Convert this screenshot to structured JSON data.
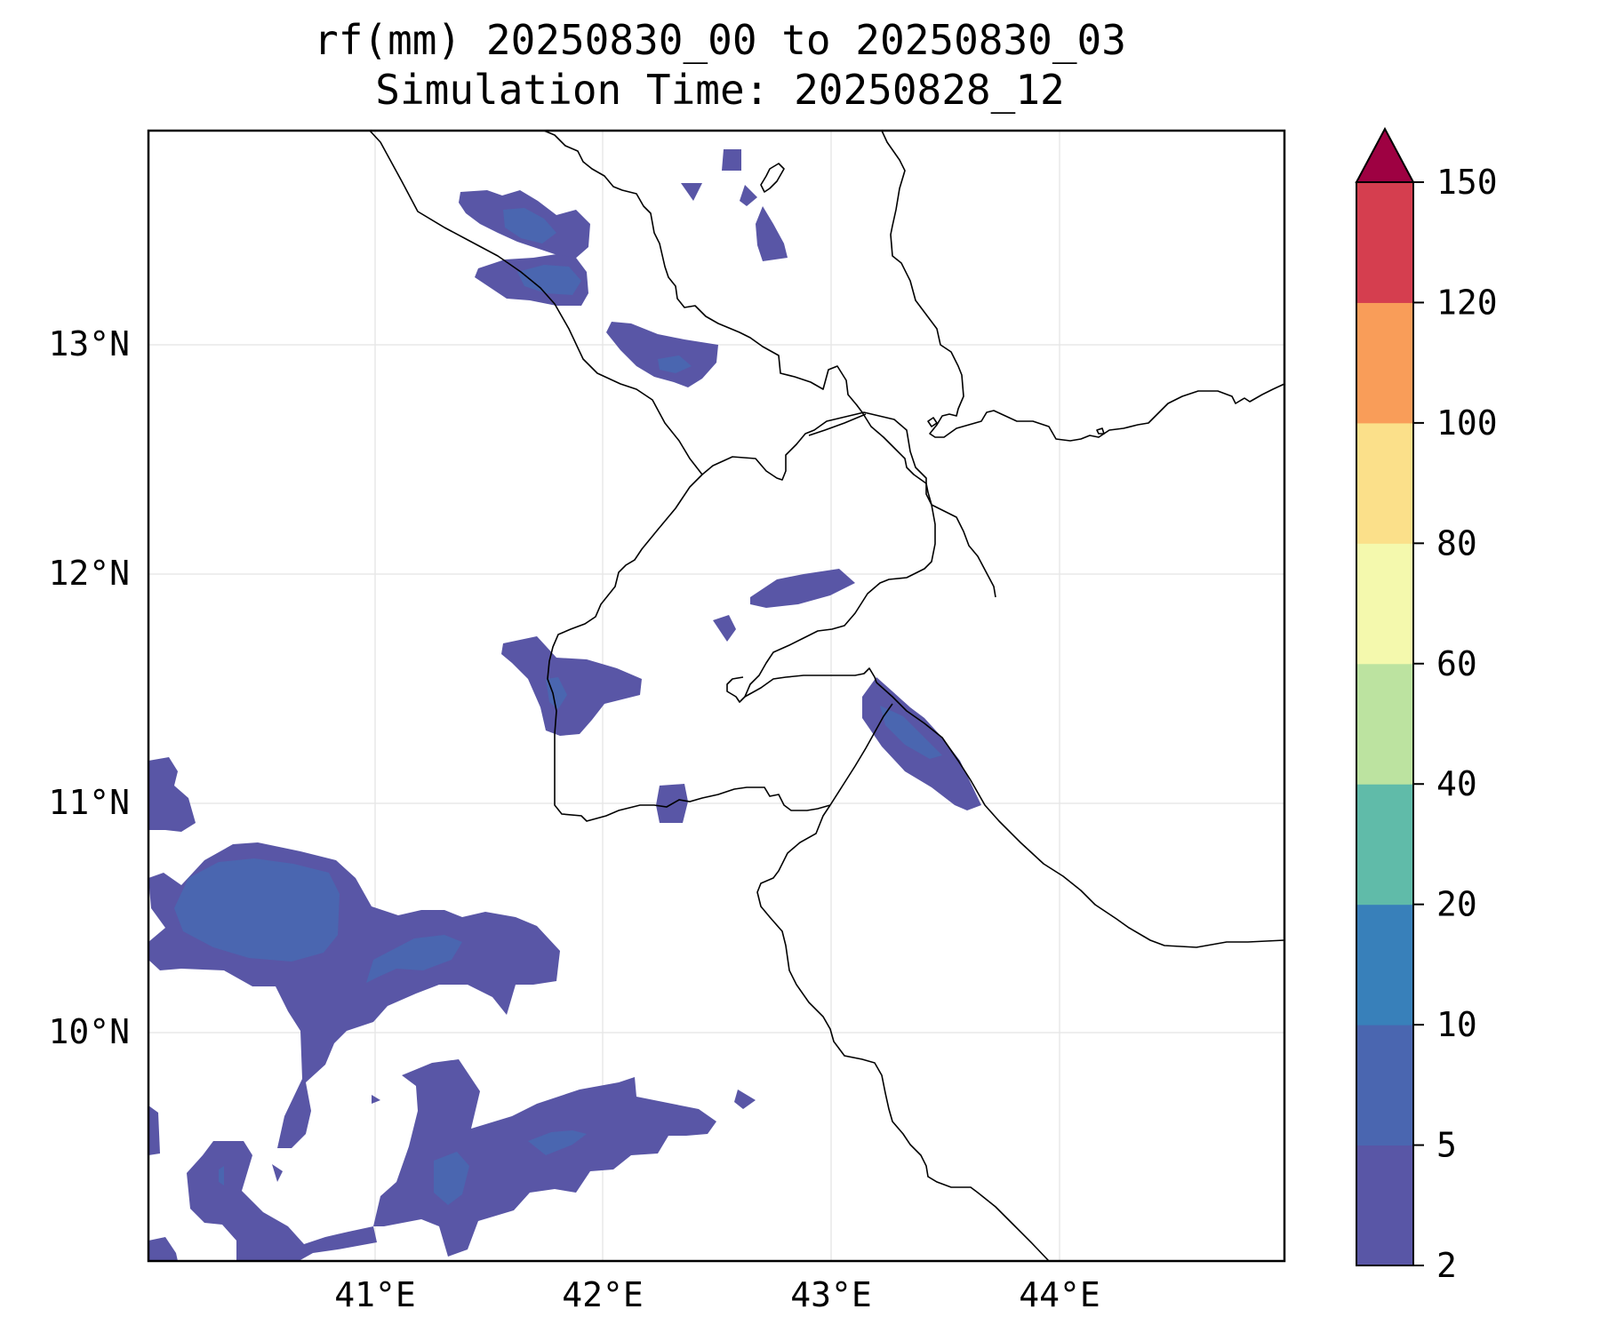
{
  "map": {
    "title_line1": "rf(mm) 20250830_00 to 20250830_03",
    "title_line2": "Simulation Time: 20250828_12",
    "lon_ticks": [
      "41°E",
      "42°E",
      "43°E",
      "44°E"
    ],
    "lat_ticks": [
      "13°N",
      "12°N",
      "11°N",
      "10°N"
    ],
    "extent": {
      "lon": [
        40.0,
        45.0
      ],
      "lat": [
        9.1,
        14.0
      ]
    }
  },
  "colorbar": {
    "levels": [
      "2",
      "5",
      "10",
      "20",
      "40",
      "60",
      "80",
      "100",
      "120",
      "150"
    ],
    "colors": [
      "#5956a6",
      "#4a66b0",
      "#3880ba",
      "#60bba9",
      "#bce3a0",
      "#f4f9ad",
      "#fbe08a",
      "#f99d59",
      "#d53e4f",
      "#9e0142"
    ],
    "extend": "max"
  },
  "palette": {
    "low": "#5956a6",
    "mid": "#4a66b0",
    "coast": "#000000",
    "grid": "#e6e6e6"
  }
}
